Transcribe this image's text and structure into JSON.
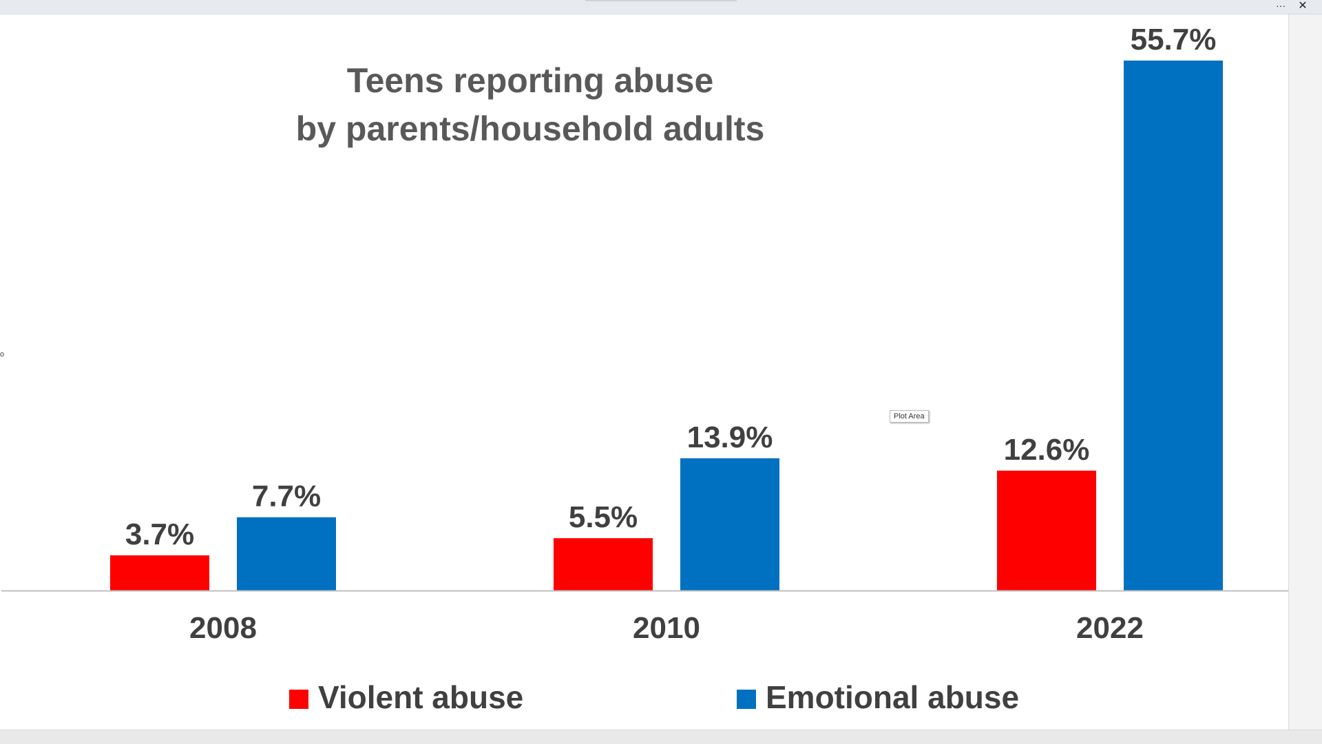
{
  "window": {
    "more_icon": "more-horizontal-icon",
    "close_icon": "close-icon",
    "more_glyph": "···",
    "close_glyph": "✕"
  },
  "tooltip": {
    "label": "Plot Area"
  },
  "chart_data": {
    "type": "bar",
    "title": [
      "Teens reporting abuse",
      "by parents/household adults"
    ],
    "categories": [
      "2008",
      "2010",
      "2022"
    ],
    "series": [
      {
        "name": "Violent abuse",
        "color": "#ff0000",
        "values": [
          3.7,
          5.5,
          12.6
        ],
        "labels": [
          "3.7%",
          "5.5%",
          "12.6%"
        ]
      },
      {
        "name": "Emotional abuse",
        "color": "#0070c0",
        "values": [
          7.7,
          13.9,
          55.7
        ],
        "labels": [
          "7.7%",
          "13.9%",
          "55.7%"
        ]
      }
    ],
    "ylim": [
      0,
      55.7
    ],
    "grid": false,
    "legend_position": "bottom",
    "text_color": "#404040",
    "axis_color": "#bfbfbf"
  }
}
